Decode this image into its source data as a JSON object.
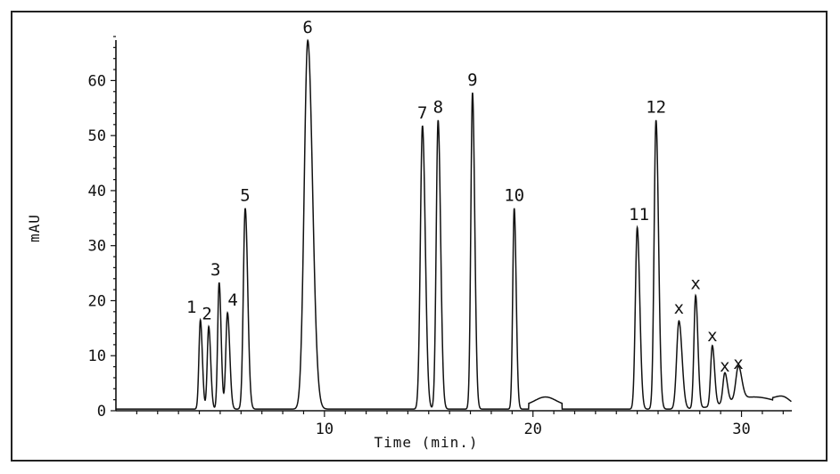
{
  "chart_data": {
    "type": "line",
    "title": "",
    "xlabel": "Time (min.)",
    "ylabel": "mAU",
    "xlim": [
      0,
      32.5
    ],
    "ylim": [
      0,
      68
    ],
    "xticks": [
      {
        "value": 10,
        "label": "10"
      },
      {
        "value": 20,
        "label": "20"
      },
      {
        "value": 30,
        "label": "30"
      }
    ],
    "yticks": [
      {
        "value": 0,
        "label": "0"
      },
      {
        "value": 10,
        "label": "10"
      },
      {
        "value": 20,
        "label": "20"
      },
      {
        "value": 30,
        "label": "30"
      },
      {
        "value": 40,
        "label": "40"
      },
      {
        "value": 50,
        "label": "50"
      },
      {
        "value": 60,
        "label": "60"
      }
    ],
    "grid": false,
    "series": [
      {
        "peaks": [
          {
            "label": "1",
            "t": 4.05,
            "h": 16.2,
            "w": 0.07
          },
          {
            "label": "2",
            "t": 4.45,
            "h": 15.0,
            "w": 0.07
          },
          {
            "label": "3",
            "t": 4.95,
            "h": 23.0,
            "w": 0.07
          },
          {
            "label": "4",
            "t": 5.35,
            "h": 17.5,
            "w": 0.08
          },
          {
            "label": "5",
            "t": 6.2,
            "h": 36.5,
            "w": 0.09
          },
          {
            "label": "6",
            "t": 9.2,
            "h": 67.0,
            "w": 0.17
          },
          {
            "label": "7",
            "t": 14.7,
            "h": 51.5,
            "w": 0.1
          },
          {
            "label": "8",
            "t": 15.45,
            "h": 52.5,
            "w": 0.09
          },
          {
            "label": "9",
            "t": 17.1,
            "h": 57.5,
            "w": 0.08
          },
          {
            "label": "10",
            "t": 19.1,
            "h": 36.5,
            "w": 0.07
          },
          {
            "label": "11",
            "t": 25.0,
            "h": 33.0,
            "w": 0.09
          },
          {
            "label": "12",
            "t": 25.9,
            "h": 52.5,
            "w": 0.09
          },
          {
            "label": "x",
            "t": 27.0,
            "h": 16.0,
            "w": 0.11
          },
          {
            "label": "x",
            "t": 27.8,
            "h": 20.5,
            "w": 0.08
          },
          {
            "label": "x",
            "t": 28.6,
            "h": 11.0,
            "w": 0.08
          },
          {
            "label": "x",
            "t": 29.2,
            "h": 5.5,
            "w": 0.09
          },
          {
            "label": "x",
            "t": 29.85,
            "h": 6.0,
            "w": 0.12
          }
        ]
      }
    ]
  }
}
